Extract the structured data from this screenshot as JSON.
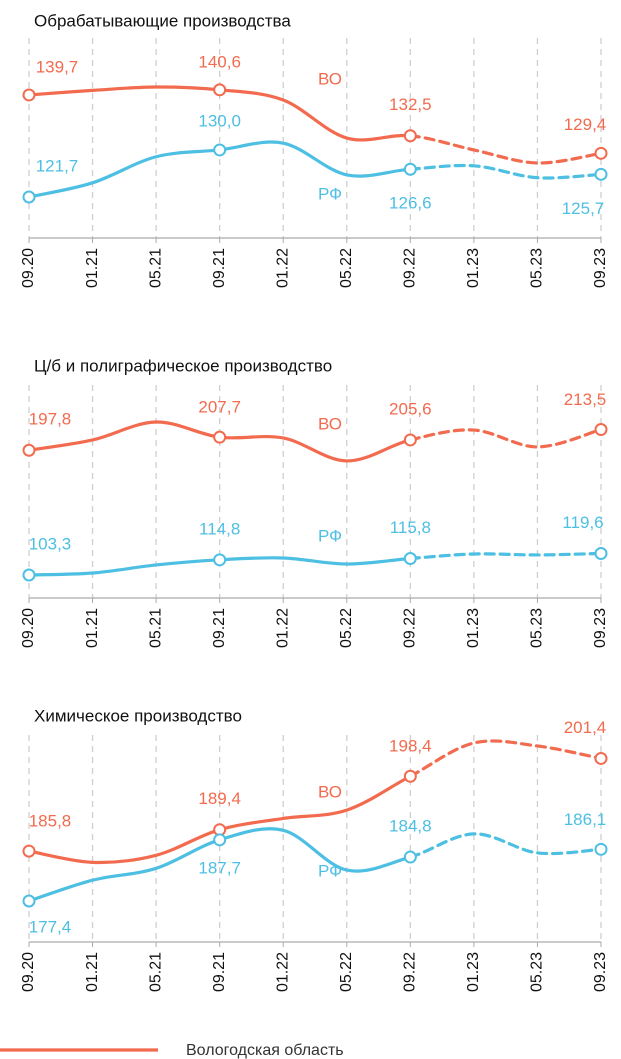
{
  "chart_data": [
    {
      "type": "line",
      "title": "Обрабатывающие производства",
      "categories": [
        "09.20",
        "01.21",
        "05.21",
        "09.21",
        "01.22",
        "05.22",
        "09.22",
        "01.23",
        "05.23",
        "09.23"
      ],
      "dashed_from": "09.22",
      "series": [
        {
          "name": "ВО",
          "color": "#f26b4f",
          "values": [
            139.7,
            140.5,
            141.1,
            140.6,
            138.8,
            132.1,
            132.5,
            130.0,
            127.7,
            129.4
          ],
          "value_labels": [
            "139,7",
            null,
            null,
            "140,6",
            null,
            null,
            "132,5",
            null,
            null,
            "129,4"
          ]
        },
        {
          "name": "РФ",
          "color": "#4dbfe3",
          "values": [
            121.7,
            124.2,
            128.8,
            130.0,
            131.2,
            125.6,
            126.6,
            127.2,
            125.1,
            125.7
          ],
          "value_labels": [
            "121,7",
            null,
            null,
            "130,0",
            null,
            null,
            "126,6",
            null,
            null,
            "125,7"
          ]
        }
      ]
    },
    {
      "type": "line",
      "title": "Ц/б и полиграфическое производство",
      "categories": [
        "09.20",
        "01.21",
        "05.21",
        "09.21",
        "01.22",
        "05.22",
        "09.22",
        "01.23",
        "05.23",
        "09.23"
      ],
      "dashed_from": "09.22",
      "series": [
        {
          "name": "ВО",
          "color": "#f26b4f",
          "values": [
            197.8,
            205.6,
            219.2,
            207.7,
            207.1,
            189.7,
            205.6,
            213.1,
            200.3,
            213.5
          ],
          "value_labels": [
            "197,8",
            null,
            null,
            "207,7",
            null,
            null,
            "205,6",
            null,
            null,
            "213,5"
          ]
        },
        {
          "name": "РФ",
          "color": "#4dbfe3",
          "values": [
            103.3,
            104.8,
            110.9,
            114.8,
            116.2,
            111.6,
            115.8,
            119.2,
            118.5,
            119.6
          ],
          "value_labels": [
            "103,3",
            null,
            null,
            "114,8",
            null,
            null,
            "115,8",
            null,
            null,
            "119,6"
          ]
        }
      ]
    },
    {
      "type": "line",
      "title": "Химическое производство",
      "categories": [
        "09.20",
        "01.21",
        "05.21",
        "09.21",
        "01.22",
        "05.22",
        "09.22",
        "01.23",
        "05.23",
        "09.23"
      ],
      "dashed_from": "09.22",
      "series": [
        {
          "name": "ВО",
          "color": "#f26b4f",
          "values": [
            185.8,
            183.9,
            185.1,
            189.4,
            191.3,
            192.7,
            198.4,
            204.0,
            203.5,
            201.4
          ],
          "value_labels": [
            "185,8",
            null,
            null,
            "189,4",
            null,
            null,
            "198,4",
            null,
            null,
            "201,4"
          ]
        },
        {
          "name": "РФ",
          "color": "#4dbfe3",
          "values": [
            177.4,
            180.9,
            182.9,
            187.7,
            189.3,
            182.6,
            184.8,
            188.7,
            185.5,
            186.1
          ],
          "value_labels": [
            "177,4",
            null,
            null,
            "187,7",
            null,
            null,
            "184,8",
            null,
            null,
            "186,1"
          ]
        }
      ]
    }
  ],
  "legend": [
    {
      "label": "Вологодская область",
      "color": "#f26b4f"
    }
  ]
}
